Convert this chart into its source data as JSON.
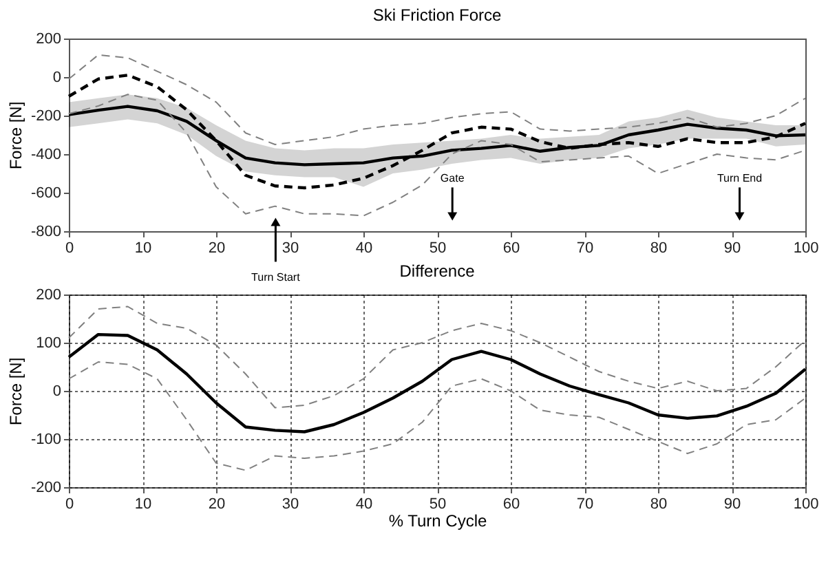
{
  "chart_data": [
    {
      "type": "line",
      "title": "Ski Friction Force",
      "ylabel": "Force [N]",
      "x": [
        0,
        4,
        8,
        12,
        16,
        20,
        24,
        28,
        32,
        36,
        40,
        44,
        48,
        52,
        56,
        60,
        64,
        68,
        72,
        76,
        80,
        84,
        88,
        92,
        96,
        100
      ],
      "xlim": [
        0,
        100
      ],
      "xticks": [
        0,
        10,
        20,
        30,
        40,
        50,
        60,
        70,
        80,
        90,
        100
      ],
      "ylim": [
        -800,
        200
      ],
      "yticks": [
        -800,
        -600,
        -400,
        -200,
        0,
        200
      ],
      "series": [
        {
          "color": "#000000",
          "line_style": "solid",
          "values": [
            -195,
            -172,
            -152,
            -175,
            -230,
            -330,
            -420,
            -445,
            -455,
            -450,
            -445,
            -420,
            -410,
            -380,
            -370,
            -355,
            -385,
            -365,
            -355,
            -300,
            -275,
            -245,
            -265,
            -275,
            -305,
            -300
          ],
          "upper": [
            -130,
            -110,
            -90,
            -110,
            -160,
            -250,
            -330,
            -370,
            -380,
            -370,
            -370,
            -350,
            -340,
            -330,
            -320,
            -300,
            -320,
            -310,
            -300,
            -230,
            -210,
            -170,
            -210,
            -230,
            -250,
            -250
          ],
          "lower": [
            -260,
            -240,
            -220,
            -240,
            -300,
            -410,
            -490,
            -510,
            -520,
            -520,
            -570,
            -500,
            -480,
            -450,
            -430,
            -420,
            -450,
            -430,
            -420,
            -370,
            -350,
            -320,
            -320,
            -320,
            -360,
            -350
          ]
        },
        {
          "color": "#000000",
          "line_style": "dashed",
          "values": [
            -100,
            -10,
            10,
            -50,
            -170,
            -330,
            -510,
            -565,
            -575,
            -560,
            -525,
            -460,
            -380,
            -290,
            -260,
            -270,
            -335,
            -370,
            -350,
            -340,
            -360,
            -320,
            -340,
            -340,
            -310,
            -240
          ]
        },
        {
          "color": "#808080",
          "line_style": "dashed",
          "values": [
            -10,
            115,
            100,
            30,
            -40,
            -130,
            -290,
            -350,
            -330,
            -310,
            -270,
            -250,
            -240,
            -210,
            -190,
            -180,
            -270,
            -280,
            -270,
            -260,
            -240,
            -210,
            -260,
            -240,
            -200,
            -110
          ]
        },
        {
          "color": "#808080",
          "line_style": "dashed",
          "values": [
            -190,
            -150,
            -90,
            -120,
            -290,
            -570,
            -710,
            -670,
            -710,
            -710,
            -720,
            -650,
            -560,
            -400,
            -330,
            -350,
            -440,
            -430,
            -420,
            -410,
            -500,
            -450,
            -400,
            -420,
            -430,
            -380
          ]
        }
      ],
      "annotations": [
        "Turn Start",
        "Gate",
        "Turn End"
      ]
    },
    {
      "type": "line",
      "title": "Difference",
      "xlabel": "% Turn Cycle",
      "ylabel": "Force [N]",
      "x": [
        0,
        4,
        8,
        12,
        16,
        20,
        24,
        28,
        32,
        36,
        40,
        44,
        48,
        52,
        56,
        60,
        64,
        68,
        72,
        76,
        80,
        84,
        88,
        92,
        96,
        100
      ],
      "xlim": [
        0,
        100
      ],
      "xticks": [
        0,
        10,
        20,
        30,
        40,
        50,
        60,
        70,
        80,
        90,
        100
      ],
      "ylim": [
        -200,
        200
      ],
      "yticks": [
        -200,
        -100,
        0,
        100,
        200
      ],
      "grid": true,
      "series": [
        {
          "color": "#000000",
          "line_style": "solid",
          "values": [
            70,
            117,
            115,
            85,
            35,
            -25,
            -75,
            -82,
            -85,
            -70,
            -45,
            -15,
            20,
            65,
            82,
            65,
            35,
            10,
            -8,
            -25,
            -50,
            -57,
            -52,
            -32,
            -5,
            45
          ]
        },
        {
          "color": "#808080",
          "line_style": "dashed",
          "values": [
            110,
            170,
            175,
            140,
            130,
            95,
            35,
            -35,
            -30,
            -10,
            25,
            85,
            100,
            125,
            140,
            125,
            100,
            70,
            40,
            20,
            5,
            20,
            0,
            5,
            50,
            105
          ]
        },
        {
          "color": "#808080",
          "line_style": "dashed",
          "values": [
            25,
            60,
            55,
            25,
            -60,
            -150,
            -165,
            -135,
            -140,
            -135,
            -125,
            -110,
            -65,
            10,
            25,
            0,
            -40,
            -50,
            -55,
            -80,
            -105,
            -130,
            -110,
            -70,
            -60,
            -15
          ]
        }
      ]
    }
  ]
}
